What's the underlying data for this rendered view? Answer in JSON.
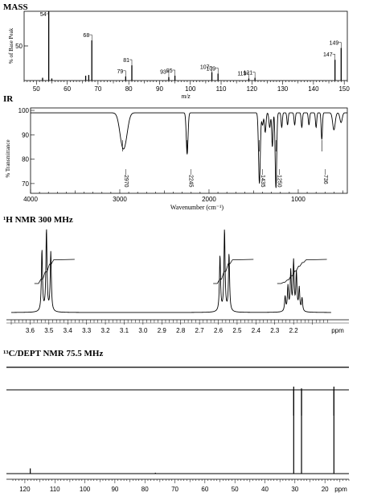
{
  "chart_data": [
    {
      "type": "bar",
      "title": "MASS",
      "xlabel": "m/z",
      "ylabel": "% of Base Peak",
      "xlim": [
        46,
        151
      ],
      "ylim": [
        0,
        100
      ],
      "xticks": [
        50,
        60,
        70,
        80,
        90,
        100,
        110,
        120,
        130,
        140,
        150
      ],
      "yticks": [
        50
      ],
      "grid": false,
      "peaks": [
        {
          "mz": 52,
          "value": 4
        },
        {
          "mz": 54,
          "value": 100,
          "label": "54"
        },
        {
          "mz": 55,
          "value": 3
        },
        {
          "mz": 66,
          "value": 7
        },
        {
          "mz": 67,
          "value": 8
        },
        {
          "mz": 68,
          "value": 58,
          "label": "68"
        },
        {
          "mz": 79,
          "value": 6,
          "label": "79"
        },
        {
          "mz": 81,
          "value": 22,
          "label": "81"
        },
        {
          "mz": 93,
          "value": 5,
          "label": "93"
        },
        {
          "mz": 95,
          "value": 7,
          "label": "95"
        },
        {
          "mz": 107,
          "value": 12,
          "label": "107"
        },
        {
          "mz": 109,
          "value": 10,
          "label": "109"
        },
        {
          "mz": 119,
          "value": 3,
          "label": "119"
        },
        {
          "mz": 121,
          "value": 4,
          "label": "121"
        },
        {
          "mz": 147,
          "value": 30,
          "label": "147"
        },
        {
          "mz": 149,
          "value": 47,
          "label": "149"
        }
      ]
    },
    {
      "type": "line",
      "title": "IR",
      "xlabel": "Wavenumber (cm⁻¹)",
      "ylabel": "% Transmittance",
      "xlim": [
        4000,
        450
      ],
      "ylim": [
        66,
        101
      ],
      "xticks": [
        4000,
        3000,
        2000,
        1000
      ],
      "yticks": [
        70,
        80,
        90,
        100
      ],
      "grid": false,
      "annotations": [
        {
          "x": 2970,
          "label": "2970"
        },
        {
          "x": 2245,
          "label": "2245"
        },
        {
          "x": 1435,
          "label": "1435"
        },
        {
          "x": 1250,
          "label": "1250"
        },
        {
          "x": 736,
          "label": "736"
        }
      ],
      "baseline": 99,
      "bands": [
        {
          "x": 2970,
          "depth": 12,
          "width": 45
        },
        {
          "x": 2930,
          "depth": 6,
          "width": 40
        },
        {
          "x": 2245,
          "depth": 17,
          "width": 14
        },
        {
          "x": 1435,
          "depth": 29,
          "width": 14
        },
        {
          "x": 1400,
          "depth": 5,
          "width": 12
        },
        {
          "x": 1370,
          "depth": 8,
          "width": 12
        },
        {
          "x": 1320,
          "depth": 6,
          "width": 12
        },
        {
          "x": 1290,
          "depth": 14,
          "width": 10
        },
        {
          "x": 1250,
          "depth": 31,
          "width": 12
        },
        {
          "x": 1185,
          "depth": 6,
          "width": 10
        },
        {
          "x": 1120,
          "depth": 5,
          "width": 10
        },
        {
          "x": 1040,
          "depth": 5,
          "width": 10
        },
        {
          "x": 960,
          "depth": 6,
          "width": 10
        },
        {
          "x": 880,
          "depth": 5,
          "width": 10
        },
        {
          "x": 800,
          "depth": 6,
          "width": 10
        },
        {
          "x": 736,
          "depth": 11,
          "width": 10
        },
        {
          "x": 600,
          "depth": 7,
          "width": 20
        },
        {
          "x": 520,
          "depth": 4,
          "width": 18
        }
      ]
    },
    {
      "type": "line",
      "title": "¹H NMR 300 MHz",
      "xlabel": "ppm",
      "xlim": [
        3.7,
        2.0
      ],
      "ylim": [
        0,
        100
      ],
      "xticks": [
        3.6,
        3.5,
        3.4,
        3.3,
        3.2,
        3.1,
        3.0,
        2.9,
        2.8,
        2.7,
        2.6,
        2.5,
        2.4,
        2.3,
        2.2
      ],
      "grid": false,
      "peaks": [
        {
          "ppm": 3.537,
          "h": 75
        },
        {
          "ppm": 3.513,
          "h": 100
        },
        {
          "ppm": 3.49,
          "h": 72
        },
        {
          "ppm": 2.591,
          "h": 68
        },
        {
          "ppm": 2.567,
          "h": 100
        },
        {
          "ppm": 2.543,
          "h": 70
        },
        {
          "ppm": 2.245,
          "h": 18
        },
        {
          "ppm": 2.23,
          "h": 30
        },
        {
          "ppm": 2.215,
          "h": 48
        },
        {
          "ppm": 2.2,
          "h": 60
        },
        {
          "ppm": 2.185,
          "h": 46
        },
        {
          "ppm": 2.17,
          "h": 28
        },
        {
          "ppm": 2.155,
          "h": 16
        }
      ],
      "integrals": [
        {
          "from": 3.56,
          "to": 3.47,
          "steps": [
            0.18,
            0.48,
            0.8,
            0.98
          ]
        },
        {
          "from": 2.61,
          "to": 2.52,
          "steps": [
            0.18,
            0.5,
            0.82,
            0.98
          ]
        },
        {
          "from": 2.27,
          "to": 2.13,
          "steps": [
            0.05,
            0.15,
            0.32,
            0.52,
            0.72,
            0.87,
            0.98
          ]
        }
      ]
    },
    {
      "type": "bar",
      "title": "¹³C/DEPT NMR 75.5 MHz",
      "xlabel": "ppm",
      "xlim": [
        124,
        12
      ],
      "xticks": [
        120,
        110,
        100,
        90,
        80,
        70,
        60,
        50,
        40,
        30,
        20
      ],
      "grid": false,
      "dept": [
        {
          "ppm": 30.4,
          "sign": "negative"
        },
        {
          "ppm": 27.8,
          "sign": "negative"
        },
        {
          "ppm": 17.0,
          "sign": "negative"
        }
      ],
      "peaks": [
        {
          "ppm": 118.2,
          "h": 6
        },
        {
          "ppm": 76.5,
          "h": 1
        },
        {
          "ppm": 30.4,
          "h": 100
        },
        {
          "ppm": 27.8,
          "h": 98
        },
        {
          "ppm": 17.0,
          "h": 100
        }
      ]
    }
  ]
}
